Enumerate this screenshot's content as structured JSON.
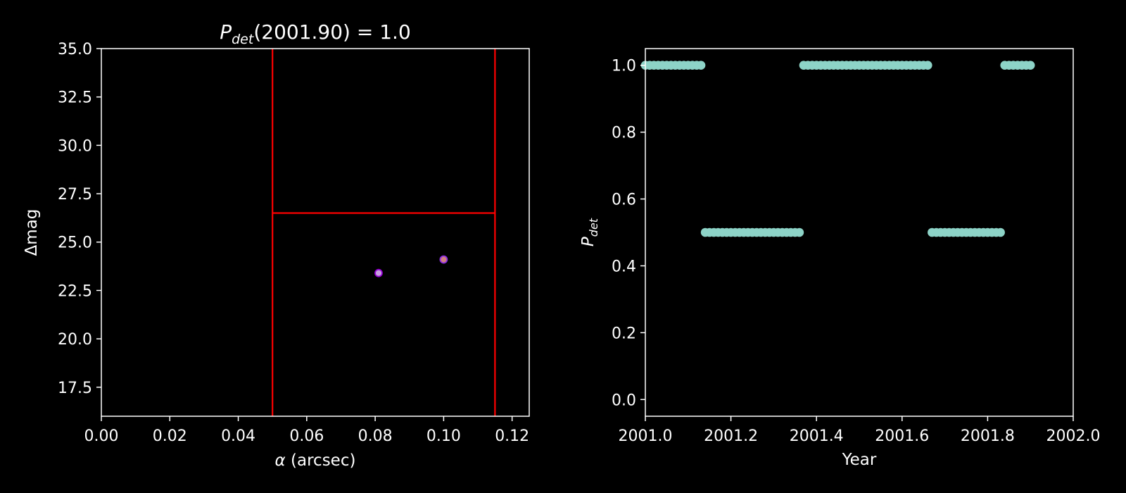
{
  "colors": {
    "background": "#000000",
    "foreground": "#ffffff",
    "boundary": "#ff0000",
    "series": "#8dd3c7",
    "planet_a_edge": "#9400d3",
    "planet_a_fill": "#c8a0e0",
    "planet_b_edge": "#8a2be2",
    "planet_b_fill": "#d08080"
  },
  "chart_data": [
    {
      "type": "scatter",
      "title_base": "P",
      "title_sub": "det",
      "title_rest": "(2001.90) = 1.0",
      "xlabel_symbol": "α",
      "xlabel_rest": " (arcsec)",
      "ylabel": "Δmag",
      "xlim": [
        0.0,
        0.125
      ],
      "ylim": [
        16.0,
        35.0
      ],
      "xticks": [
        0.0,
        0.02,
        0.04,
        0.06,
        0.08,
        0.1,
        0.12
      ],
      "xtick_labels": [
        "0.00",
        "0.02",
        "0.04",
        "0.06",
        "0.08",
        "0.10",
        "0.12"
      ],
      "yticks": [
        17.5,
        20.0,
        22.5,
        25.0,
        27.5,
        30.0,
        32.5,
        35.0
      ],
      "ytick_labels": [
        "17.5",
        "20.0",
        "22.5",
        "25.0",
        "27.5",
        "30.0",
        "32.5",
        "35.0"
      ],
      "boundaries": {
        "vertical": [
          0.05,
          0.115
        ],
        "horizontal": {
          "y": 26.5,
          "x_from": 0.05,
          "x_to": 0.115
        }
      },
      "points": [
        {
          "x": 0.081,
          "y": 23.4
        },
        {
          "x": 0.1,
          "y": 24.1
        }
      ]
    },
    {
      "type": "scatter",
      "xlabel": "Year",
      "ylabel_base": "P",
      "ylabel_sub": "det",
      "xlim": [
        2001.0,
        2002.0
      ],
      "ylim": [
        -0.05,
        1.05
      ],
      "xticks": [
        2001.0,
        2001.2,
        2001.4,
        2001.6,
        2001.8,
        2002.0
      ],
      "xtick_labels": [
        "2001.0",
        "2001.2",
        "2001.4",
        "2001.6",
        "2001.8",
        "2002.0"
      ],
      "yticks": [
        0.0,
        0.2,
        0.4,
        0.6,
        0.8,
        1.0
      ],
      "ytick_labels": [
        "0.0",
        "0.2",
        "0.4",
        "0.6",
        "0.8",
        "1.0"
      ],
      "segments": [
        {
          "x_start": 2001.0,
          "x_end": 2001.13,
          "y": 1.0
        },
        {
          "x_start": 2001.14,
          "x_end": 2001.36,
          "y": 0.5
        },
        {
          "x_start": 2001.37,
          "x_end": 2001.66,
          "y": 1.0
        },
        {
          "x_start": 2001.67,
          "x_end": 2001.83,
          "y": 0.5
        },
        {
          "x_start": 2001.84,
          "x_end": 2001.9,
          "y": 1.0
        }
      ],
      "step": 0.01
    }
  ]
}
